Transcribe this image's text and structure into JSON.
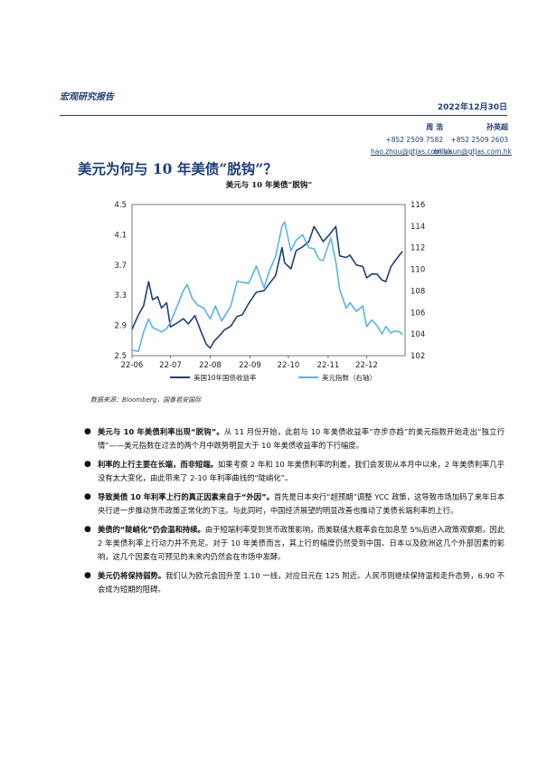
{
  "header": {
    "report_type": "宏观研究报告",
    "date": "2022年12月30日"
  },
  "authors": [
    {
      "name": "周 浩",
      "phone": "+852 2509 7582",
      "email": "hao.zhou@gtjas.com.hk"
    },
    {
      "name": "孙英超",
      "phone": "+852 2509 2603",
      "email": "billy.sun@gtjas.com.hk"
    }
  ],
  "title": "美元为何与 10 年美债“脱钩”？",
  "chart_data": {
    "type": "line",
    "title": "美元与 10 年美债“脱钩”",
    "x_ticks": [
      "22-06",
      "22-07",
      "22-08",
      "22-09",
      "22-10",
      "22-11",
      "22-12"
    ],
    "y_left": {
      "ticks": [
        "2.5",
        "2.9",
        "3.3",
        "3.7",
        "4.1",
        "4.5"
      ],
      "range": [
        2.5,
        4.5
      ]
    },
    "y_right": {
      "ticks": [
        "102",
        "104",
        "106",
        "108",
        "110",
        "112",
        "114",
        "116"
      ],
      "range": [
        102,
        116
      ]
    },
    "x_domain": [
      "2022-06-01",
      "2022-12-31"
    ],
    "series": [
      {
        "name": "美国10年国债收益率",
        "color": "#1f3f7a",
        "axis": "left",
        "points": [
          [
            "2022-06-01",
            2.85
          ],
          [
            "2022-06-06",
            3.04
          ],
          [
            "2022-06-10",
            3.16
          ],
          [
            "2022-06-14",
            3.48
          ],
          [
            "2022-06-17",
            3.24
          ],
          [
            "2022-06-21",
            3.28
          ],
          [
            "2022-06-24",
            3.13
          ],
          [
            "2022-06-28",
            3.2
          ],
          [
            "2022-07-01",
            2.88
          ],
          [
            "2022-07-06",
            2.93
          ],
          [
            "2022-07-11",
            2.99
          ],
          [
            "2022-07-15",
            2.92
          ],
          [
            "2022-07-20",
            3.03
          ],
          [
            "2022-07-25",
            2.81
          ],
          [
            "2022-07-29",
            2.65
          ],
          [
            "2022-08-01",
            2.6
          ],
          [
            "2022-08-04",
            2.69
          ],
          [
            "2022-08-08",
            2.76
          ],
          [
            "2022-08-12",
            2.84
          ],
          [
            "2022-08-17",
            2.89
          ],
          [
            "2022-08-22",
            3.02
          ],
          [
            "2022-08-26",
            3.04
          ],
          [
            "2022-08-31",
            3.19
          ],
          [
            "2022-09-06",
            3.34
          ],
          [
            "2022-09-12",
            3.36
          ],
          [
            "2022-09-16",
            3.45
          ],
          [
            "2022-09-21",
            3.56
          ],
          [
            "2022-09-26",
            3.93
          ],
          [
            "2022-09-28",
            3.73
          ],
          [
            "2022-10-03",
            3.65
          ],
          [
            "2022-10-07",
            3.89
          ],
          [
            "2022-10-12",
            3.94
          ],
          [
            "2022-10-17",
            4.01
          ],
          [
            "2022-10-21",
            4.21
          ],
          [
            "2022-10-25",
            4.1
          ],
          [
            "2022-10-28",
            4.01
          ],
          [
            "2022-11-02",
            4.1
          ],
          [
            "2022-11-07",
            4.21
          ],
          [
            "2022-11-10",
            3.82
          ],
          [
            "2022-11-15",
            3.8
          ],
          [
            "2022-11-18",
            3.83
          ],
          [
            "2022-11-23",
            3.7
          ],
          [
            "2022-11-28",
            3.68
          ],
          [
            "2022-12-01",
            3.53
          ],
          [
            "2022-12-05",
            3.58
          ],
          [
            "2022-12-09",
            3.58
          ],
          [
            "2022-12-13",
            3.5
          ],
          [
            "2022-12-16",
            3.48
          ],
          [
            "2022-12-20",
            3.68
          ],
          [
            "2022-12-23",
            3.75
          ],
          [
            "2022-12-27",
            3.84
          ],
          [
            "2022-12-29",
            3.88
          ]
        ]
      },
      {
        "name": "美元指数（右轴）",
        "color": "#5ab4e6",
        "axis": "right",
        "points": [
          [
            "2022-06-01",
            102.5
          ],
          [
            "2022-06-06",
            102.4
          ],
          [
            "2022-06-10",
            104.2
          ],
          [
            "2022-06-14",
            105.4
          ],
          [
            "2022-06-17",
            104.6
          ],
          [
            "2022-06-21",
            104.4
          ],
          [
            "2022-06-24",
            104.2
          ],
          [
            "2022-06-28",
            104.5
          ],
          [
            "2022-07-01",
            105.1
          ],
          [
            "2022-07-06",
            106.5
          ],
          [
            "2022-07-11",
            108.0
          ],
          [
            "2022-07-14",
            108.6
          ],
          [
            "2022-07-18",
            107.3
          ],
          [
            "2022-07-22",
            106.7
          ],
          [
            "2022-07-27",
            106.4
          ],
          [
            "2022-08-01",
            105.4
          ],
          [
            "2022-08-05",
            106.6
          ],
          [
            "2022-08-10",
            105.2
          ],
          [
            "2022-08-12",
            105.6
          ],
          [
            "2022-08-17",
            106.6
          ],
          [
            "2022-08-22",
            108.9
          ],
          [
            "2022-08-26",
            108.8
          ],
          [
            "2022-08-31",
            108.7
          ],
          [
            "2022-09-06",
            110.3
          ],
          [
            "2022-09-12",
            108.3
          ],
          [
            "2022-09-16",
            109.8
          ],
          [
            "2022-09-21",
            111.2
          ],
          [
            "2022-09-26",
            114.0
          ],
          [
            "2022-09-28",
            114.4
          ],
          [
            "2022-10-03",
            111.7
          ],
          [
            "2022-10-07",
            112.7
          ],
          [
            "2022-10-12",
            113.2
          ],
          [
            "2022-10-17",
            112.0
          ],
          [
            "2022-10-21",
            111.9
          ],
          [
            "2022-10-25",
            110.9
          ],
          [
            "2022-10-28",
            110.8
          ],
          [
            "2022-11-03",
            112.9
          ],
          [
            "2022-11-07",
            110.7
          ],
          [
            "2022-11-10",
            108.1
          ],
          [
            "2022-11-15",
            106.4
          ],
          [
            "2022-11-18",
            106.9
          ],
          [
            "2022-11-23",
            106.1
          ],
          [
            "2022-11-28",
            106.6
          ],
          [
            "2022-12-01",
            104.7
          ],
          [
            "2022-12-05",
            105.3
          ],
          [
            "2022-12-09",
            104.8
          ],
          [
            "2022-12-13",
            104.0
          ],
          [
            "2022-12-16",
            104.7
          ],
          [
            "2022-12-20",
            104.1
          ],
          [
            "2022-12-23",
            104.3
          ],
          [
            "2022-12-27",
            104.2
          ],
          [
            "2022-12-29",
            103.9
          ]
        ]
      }
    ]
  },
  "source": "数据来源：Bloomberg，国泰君安国际",
  "bullets": [
    {
      "bold": "美元与 10 年美债利率出现“脱钩”。",
      "text": "从 11 月份开始，此前与 10 年美债收益率“亦步亦趋”的美元指数开始走出“独立行情”——美元指数在过去的两个月中跌势明显大于 10 年美债收益率的下行幅度。"
    },
    {
      "bold": "利率的上行主要在长端，而非短端。",
      "text": "如果考察 2 年和 10 年美债利率的利差，我们会发现从本月中以来，2 年美债利率几乎没有太大变化，由此带来了 2-10 年利率曲线的“陡峭化”。"
    },
    {
      "bold": "导致美债 10 年利率上行的真正因素来自于“外因”。",
      "text": "首先是日本央行“超预期”调整 YCC 政策，这导致市场加码了来年日本央行进一步推动货币政策正常化的下注。与此同时，中国经济展望的明显改善也推动了美债长端利率的上行。"
    },
    {
      "bold": "美债的“陡峭化”仍会温和持续。",
      "text": "由于短端利率受到货币政策影响，而美联储大概率会在加息至 5%后进入政策观察期，因此 2 年美债利率上行动力并不充足。对于 10 年美债而言，其上行的幅度仍然受到中国、日本以及欧洲这几个外部因素的影响，这几个因素在可预见的未来内仍然会在市场中发酵。"
    },
    {
      "bold": "美元仍将保持弱势。",
      "text": "我们认为欧元会回升至 1.10 一线，对应日元在 125 附近。人民币则继续保持温和走升态势，6.90 不会成为短期的阻碍。"
    }
  ]
}
